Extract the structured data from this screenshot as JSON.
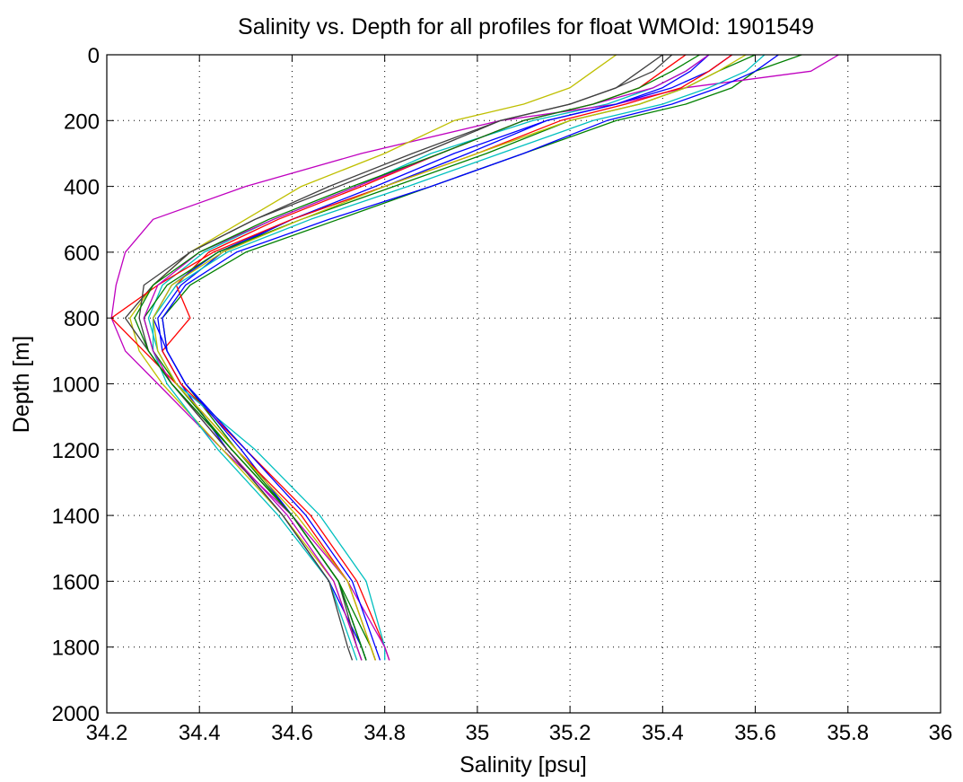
{
  "chart_data": {
    "type": "line",
    "title": "Salinity vs. Depth for all profiles for float WMOId: 1901549",
    "xlabel": "Salinity [psu]",
    "ylabel": "Depth [m]",
    "xlim": [
      34.2,
      36
    ],
    "ylim": [
      0,
      2000
    ],
    "y_reversed": true,
    "grid": true,
    "x_ticks": [
      34.2,
      34.4,
      34.6,
      34.8,
      35,
      35.2,
      35.4,
      35.6,
      35.8,
      36
    ],
    "x_tick_labels": [
      "34.2",
      "34.4",
      "34.6",
      "34.8",
      "35",
      "35.2",
      "35.4",
      "35.6",
      "35.8",
      "36"
    ],
    "y_ticks": [
      0,
      200,
      400,
      600,
      800,
      1000,
      1200,
      1400,
      1600,
      1800,
      2000
    ],
    "y_tick_labels": [
      "0",
      "200",
      "400",
      "600",
      "800",
      "1000",
      "1200",
      "1400",
      "1600",
      "1800",
      "2000"
    ],
    "depth_levels": [
      0,
      50,
      100,
      150,
      200,
      300,
      400,
      500,
      600,
      700,
      800,
      900,
      1000,
      1200,
      1400,
      1600,
      1800,
      1840
    ],
    "series": [
      {
        "color": "#0000ff",
        "values": [
          35.55,
          35.5,
          35.42,
          35.3,
          35.15,
          34.95,
          34.78,
          34.6,
          34.45,
          34.36,
          34.31,
          34.32,
          34.36,
          34.46,
          34.58,
          34.68,
          34.75,
          34.76
        ]
      },
      {
        "color": "#008000",
        "values": [
          35.7,
          35.6,
          35.55,
          35.45,
          35.3,
          35.1,
          34.9,
          34.7,
          34.5,
          34.38,
          34.32,
          34.33,
          34.37,
          34.48,
          34.6,
          34.7,
          34.77,
          34.78
        ]
      },
      {
        "color": "#ff0000",
        "values": [
          35.45,
          35.4,
          35.35,
          35.25,
          35.1,
          34.92,
          34.75,
          34.57,
          34.42,
          34.35,
          34.38,
          34.32,
          34.36,
          34.5,
          34.64,
          34.74,
          34.8,
          34.81
        ]
      },
      {
        "color": "#00bfbf",
        "values": [
          35.5,
          35.45,
          35.38,
          35.28,
          35.12,
          34.9,
          34.74,
          34.56,
          34.41,
          34.32,
          34.29,
          34.31,
          34.35,
          34.52,
          34.66,
          34.76,
          34.8,
          34.8
        ]
      },
      {
        "color": "#bf00bf",
        "values": [
          35.78,
          35.72,
          35.45,
          35.3,
          35.05,
          34.75,
          34.5,
          34.3,
          34.24,
          34.22,
          34.21,
          34.24,
          34.31,
          34.45,
          34.6,
          34.72,
          34.8,
          34.81
        ]
      },
      {
        "color": "#bfbf00",
        "values": [
          35.3,
          35.25,
          35.2,
          35.1,
          34.95,
          34.8,
          34.62,
          34.5,
          34.38,
          34.3,
          34.25,
          34.27,
          34.32,
          34.45,
          34.58,
          34.69,
          34.74,
          34.75
        ]
      },
      {
        "color": "#404040",
        "values": [
          35.4,
          35.35,
          35.3,
          35.2,
          35.05,
          34.88,
          34.7,
          34.52,
          34.38,
          34.3,
          34.24,
          34.29,
          34.34,
          34.47,
          34.6,
          34.7,
          34.74,
          34.75
        ]
      },
      {
        "color": "#0000ff",
        "values": [
          35.5,
          35.46,
          35.4,
          35.3,
          35.15,
          34.98,
          34.8,
          34.6,
          34.44,
          34.34,
          34.3,
          34.33,
          34.37,
          34.49,
          34.6,
          34.7,
          34.75,
          34.76
        ]
      },
      {
        "color": "#008000",
        "values": [
          35.6,
          35.52,
          35.45,
          35.35,
          35.2,
          35.02,
          34.82,
          34.62,
          34.44,
          34.33,
          34.28,
          34.3,
          34.35,
          34.47,
          34.6,
          34.7,
          34.75,
          34.76
        ]
      },
      {
        "color": "#ff0000",
        "values": [
          35.55,
          35.5,
          35.44,
          35.32,
          35.18,
          35.0,
          34.8,
          34.6,
          34.43,
          34.31,
          34.21,
          34.28,
          34.35,
          34.48,
          34.62,
          34.72,
          34.77,
          34.78
        ]
      },
      {
        "color": "#00bfbf",
        "values": [
          35.62,
          35.58,
          35.5,
          35.4,
          35.25,
          35.05,
          34.85,
          34.64,
          34.46,
          34.35,
          34.3,
          34.3,
          34.33,
          34.44,
          34.57,
          34.68,
          34.73,
          34.74
        ]
      },
      {
        "color": "#bf00bf",
        "values": [
          35.5,
          35.45,
          35.38,
          35.25,
          35.1,
          34.92,
          34.74,
          34.56,
          34.4,
          34.31,
          34.28,
          34.3,
          34.34,
          34.46,
          34.59,
          34.69,
          34.74,
          34.75
        ]
      },
      {
        "color": "#bfbf00",
        "values": [
          35.58,
          35.52,
          35.45,
          35.35,
          35.2,
          35.0,
          34.8,
          34.62,
          34.45,
          34.34,
          34.3,
          34.31,
          34.35,
          34.48,
          34.61,
          34.72,
          34.77,
          34.78
        ]
      },
      {
        "color": "#404040",
        "values": [
          35.42,
          35.38,
          35.3,
          35.2,
          35.05,
          34.86,
          34.68,
          34.52,
          34.38,
          34.28,
          34.27,
          34.29,
          34.34,
          34.46,
          34.58,
          34.68,
          34.72,
          34.73
        ]
      },
      {
        "color": "#0000ff",
        "values": [
          35.65,
          35.6,
          35.52,
          35.42,
          35.28,
          35.1,
          34.9,
          34.68,
          34.48,
          34.37,
          34.32,
          34.33,
          34.37,
          34.5,
          34.63,
          34.73,
          34.78,
          34.79
        ]
      },
      {
        "color": "#008000",
        "values": [
          35.48,
          35.42,
          35.35,
          35.25,
          35.1,
          34.92,
          34.73,
          34.55,
          34.4,
          34.3,
          34.26,
          34.29,
          34.34,
          34.47,
          34.6,
          34.7,
          34.75,
          34.76
        ]
      }
    ]
  }
}
